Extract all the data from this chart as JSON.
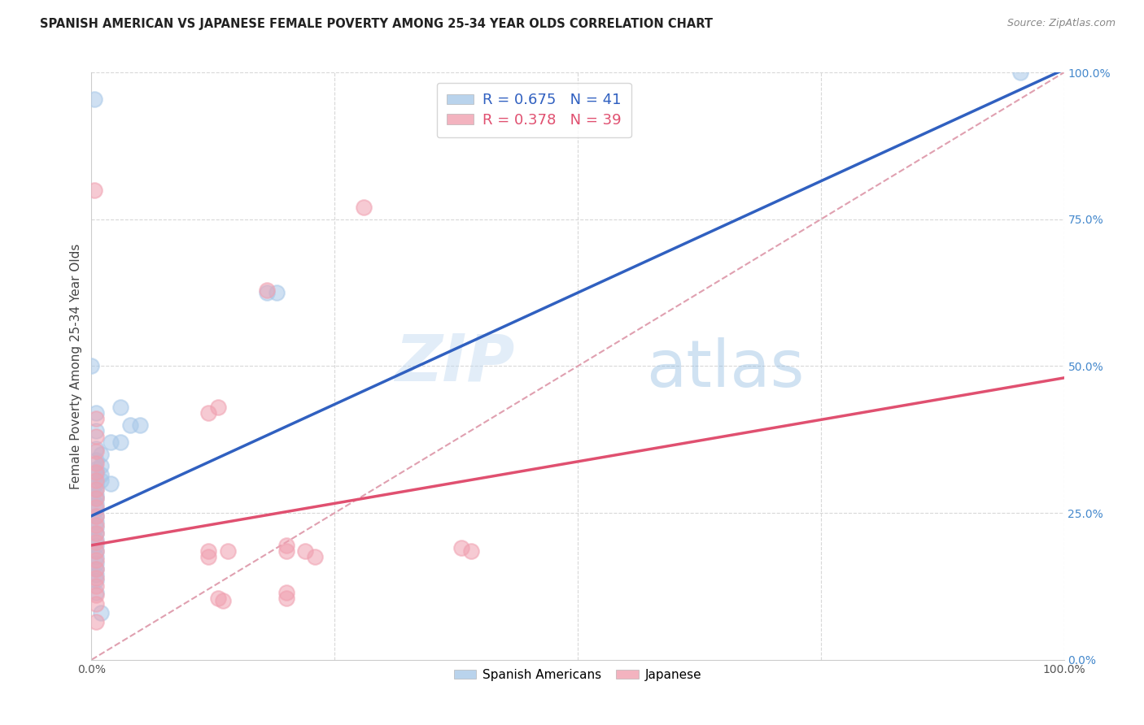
{
  "title": "SPANISH AMERICAN VS JAPANESE FEMALE POVERTY AMONG 25-34 YEAR OLDS CORRELATION CHART",
  "source": "Source: ZipAtlas.com",
  "ylabel": "Female Poverty Among 25-34 Year Olds",
  "watermark_zip": "ZIP",
  "watermark_atlas": "atlas",
  "spanish_color": "#a8c8e8",
  "japanese_color": "#f0a0b0",
  "regression_blue": "#3060c0",
  "regression_pink": "#e05070",
  "dashed_color": "#e0a0b0",
  "grid_color": "#d8d8d8",
  "right_axis_color": "#4488cc",
  "spanish_data": [
    [
      0.003,
      0.955
    ],
    [
      0.18,
      0.625
    ],
    [
      0.19,
      0.625
    ],
    [
      0.0,
      0.5
    ],
    [
      0.03,
      0.43
    ],
    [
      0.04,
      0.4
    ],
    [
      0.02,
      0.37
    ],
    [
      0.03,
      0.37
    ],
    [
      0.05,
      0.4
    ],
    [
      0.01,
      0.35
    ],
    [
      0.01,
      0.33
    ],
    [
      0.01,
      0.315
    ],
    [
      0.01,
      0.305
    ],
    [
      0.02,
      0.3
    ],
    [
      0.005,
      0.42
    ],
    [
      0.005,
      0.39
    ],
    [
      0.005,
      0.36
    ],
    [
      0.005,
      0.34
    ],
    [
      0.005,
      0.325
    ],
    [
      0.005,
      0.315
    ],
    [
      0.005,
      0.3
    ],
    [
      0.005,
      0.29
    ],
    [
      0.005,
      0.28
    ],
    [
      0.005,
      0.275
    ],
    [
      0.005,
      0.265
    ],
    [
      0.005,
      0.255
    ],
    [
      0.005,
      0.245
    ],
    [
      0.005,
      0.235
    ],
    [
      0.005,
      0.225
    ],
    [
      0.005,
      0.215
    ],
    [
      0.005,
      0.205
    ],
    [
      0.005,
      0.195
    ],
    [
      0.005,
      0.185
    ],
    [
      0.005,
      0.175
    ],
    [
      0.005,
      0.165
    ],
    [
      0.005,
      0.155
    ],
    [
      0.005,
      0.145
    ],
    [
      0.005,
      0.135
    ],
    [
      0.005,
      0.115
    ],
    [
      0.01,
      0.08
    ],
    [
      0.955,
      1.0
    ]
  ],
  "japanese_data": [
    [
      0.003,
      0.8
    ],
    [
      0.28,
      0.77
    ],
    [
      0.18,
      0.63
    ],
    [
      0.13,
      0.43
    ],
    [
      0.005,
      0.41
    ],
    [
      0.005,
      0.38
    ],
    [
      0.12,
      0.42
    ],
    [
      0.005,
      0.355
    ],
    [
      0.005,
      0.335
    ],
    [
      0.005,
      0.32
    ],
    [
      0.005,
      0.305
    ],
    [
      0.005,
      0.29
    ],
    [
      0.005,
      0.275
    ],
    [
      0.005,
      0.26
    ],
    [
      0.005,
      0.245
    ],
    [
      0.005,
      0.23
    ],
    [
      0.005,
      0.215
    ],
    [
      0.005,
      0.2
    ],
    [
      0.005,
      0.185
    ],
    [
      0.005,
      0.17
    ],
    [
      0.005,
      0.155
    ],
    [
      0.005,
      0.14
    ],
    [
      0.005,
      0.125
    ],
    [
      0.005,
      0.11
    ],
    [
      0.12,
      0.175
    ],
    [
      0.12,
      0.185
    ],
    [
      0.005,
      0.095
    ],
    [
      0.14,
      0.185
    ],
    [
      0.2,
      0.195
    ],
    [
      0.2,
      0.185
    ],
    [
      0.22,
      0.185
    ],
    [
      0.23,
      0.175
    ],
    [
      0.38,
      0.19
    ],
    [
      0.39,
      0.185
    ],
    [
      0.13,
      0.105
    ],
    [
      0.135,
      0.1
    ],
    [
      0.2,
      0.105
    ],
    [
      0.2,
      0.115
    ],
    [
      0.005,
      0.065
    ]
  ],
  "xlim": [
    0.0,
    1.0
  ],
  "ylim": [
    0.0,
    1.0
  ],
  "blue_slope": 0.76,
  "blue_intercept": 0.245,
  "pink_slope": 0.285,
  "pink_intercept": 0.195,
  "legend_blue_text": "R = 0.675   N = 41",
  "legend_pink_text": "R = 0.378   N = 39",
  "legend_blue_label": "Spanish Americans",
  "legend_pink_label": "Japanese"
}
